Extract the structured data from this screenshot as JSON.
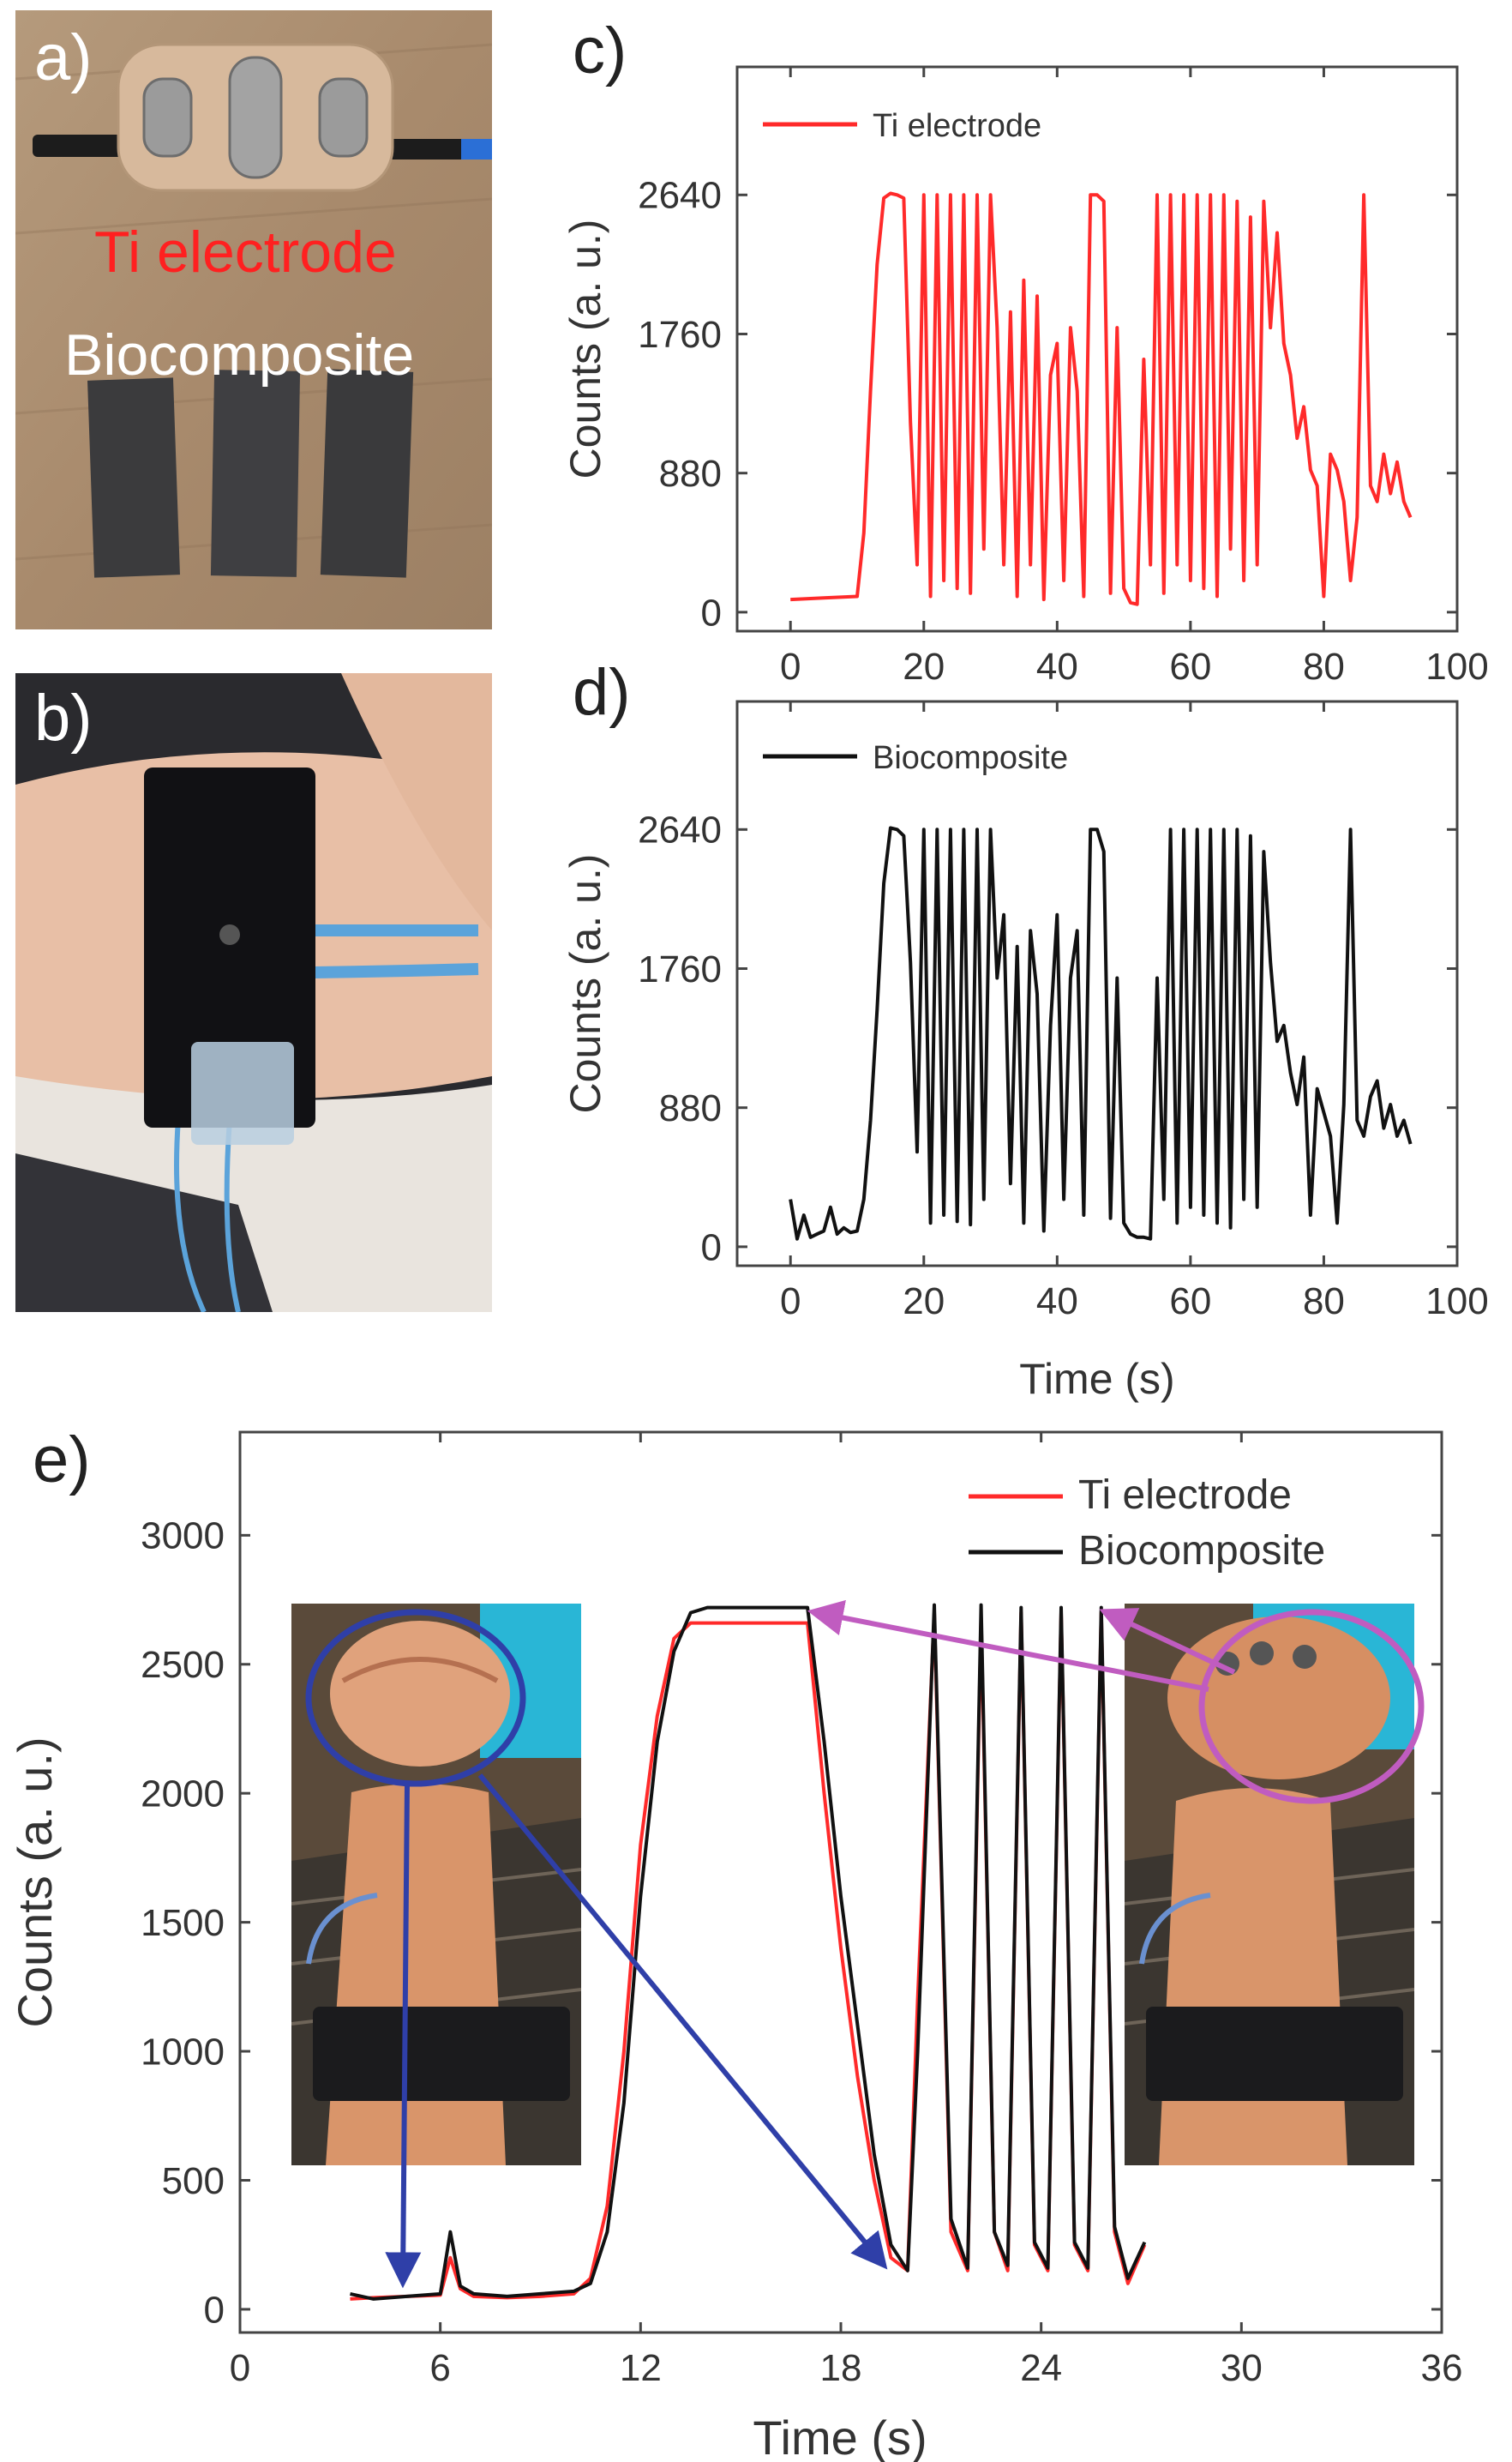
{
  "panels": {
    "a": {
      "letter": "a)",
      "label_ti": "Ti electrode",
      "label_bio": "Biocomposite"
    },
    "b": {
      "letter": "b)"
    },
    "c": {
      "letter": "c)"
    },
    "d": {
      "letter": "d)"
    },
    "e": {
      "letter": "e)"
    }
  },
  "colors": {
    "ti": "#ff2a2a",
    "bio": "#111111",
    "blue_arrow": "#2f3fa8",
    "magenta_arrow": "#c05cc0"
  },
  "icons": [
    "blue-arrow-icon",
    "magenta-arrow-icon",
    "clenched-fist-photo"
  ],
  "chart_data": [
    {
      "id": "c",
      "type": "line",
      "xlabel": "",
      "ylabel": "Counts (a. u.)",
      "xlim": [
        -8,
        100
      ],
      "ylim": [
        -120,
        3450
      ],
      "xticks": [
        0,
        20,
        40,
        60,
        80,
        100
      ],
      "yticks": [
        0,
        880,
        1760,
        2640
      ],
      "legend": "top-left",
      "series": [
        {
          "name": "Ti electrode",
          "color": "#ff2a2a",
          "x": [
            0,
            5,
            10,
            11,
            12,
            13,
            14,
            15,
            16,
            17,
            18,
            19,
            20,
            21,
            22,
            23,
            24,
            25,
            26,
            27,
            28,
            29,
            30,
            31,
            32,
            33,
            34,
            35,
            36,
            37,
            38,
            39,
            40,
            41,
            42,
            43,
            44,
            45,
            46,
            47,
            48,
            49,
            50,
            51,
            52,
            53,
            54,
            55,
            56,
            57,
            58,
            59,
            60,
            61,
            62,
            63,
            64,
            65,
            66,
            67,
            68,
            69,
            70,
            71,
            72,
            73,
            74,
            75,
            76,
            77,
            78,
            79,
            80,
            81,
            82,
            83,
            84,
            85,
            86,
            87,
            88,
            89,
            90,
            91,
            92,
            93
          ],
          "y": [
            80,
            90,
            100,
            500,
            1400,
            2200,
            2620,
            2650,
            2640,
            2620,
            1200,
            300,
            2640,
            100,
            2640,
            200,
            2640,
            150,
            2640,
            120,
            2640,
            400,
            2640,
            1800,
            300,
            1900,
            100,
            2100,
            300,
            2000,
            80,
            1500,
            1700,
            200,
            1800,
            1400,
            100,
            2640,
            2640,
            2600,
            120,
            1800,
            150,
            60,
            50,
            1600,
            300,
            2640,
            120,
            2640,
            300,
            2640,
            200,
            2640,
            150,
            2640,
            100,
            2640,
            400,
            2600,
            200,
            2500,
            300,
            2600,
            1800,
            2400,
            1700,
            1500,
            1100,
            1300,
            900,
            800,
            100,
            1000,
            900,
            700,
            200,
            600,
            2640,
            800,
            700,
            1000,
            750,
            950,
            700,
            600
          ]
        }
      ]
    },
    {
      "id": "d",
      "type": "line",
      "xlabel": "Time (s)",
      "ylabel": "Counts (a. u.)",
      "xlim": [
        -8,
        100
      ],
      "ylim": [
        -120,
        3450
      ],
      "xticks": [
        0,
        20,
        40,
        60,
        80,
        100
      ],
      "yticks": [
        0,
        880,
        1760,
        2640
      ],
      "legend": "top-left",
      "series": [
        {
          "name": "Biocomposite",
          "color": "#111111",
          "x": [
            0,
            1,
            2,
            3,
            4,
            5,
            6,
            7,
            8,
            9,
            10,
            11,
            12,
            13,
            14,
            15,
            16,
            17,
            18,
            19,
            20,
            21,
            22,
            23,
            24,
            25,
            26,
            27,
            28,
            29,
            30,
            31,
            32,
            33,
            34,
            35,
            36,
            37,
            38,
            39,
            40,
            41,
            42,
            43,
            44,
            45,
            46,
            47,
            48,
            49,
            50,
            51,
            52,
            53,
            54,
            55,
            56,
            57,
            58,
            59,
            60,
            61,
            62,
            63,
            64,
            65,
            66,
            67,
            68,
            69,
            70,
            71,
            72,
            73,
            74,
            75,
            76,
            77,
            78,
            79,
            80,
            81,
            82,
            83,
            84,
            85,
            86,
            87,
            88,
            89,
            90,
            91,
            92,
            93
          ],
          "y": [
            300,
            50,
            200,
            60,
            80,
            100,
            250,
            80,
            120,
            90,
            100,
            300,
            800,
            1500,
            2300,
            2650,
            2640,
            2600,
            1800,
            600,
            2640,
            150,
            2640,
            200,
            2640,
            160,
            2640,
            140,
            2640,
            300,
            2640,
            1700,
            2100,
            400,
            1900,
            150,
            2000,
            1600,
            100,
            1400,
            2100,
            300,
            1700,
            2000,
            200,
            2640,
            2640,
            2500,
            180,
            1700,
            150,
            80,
            60,
            60,
            50,
            1700,
            300,
            2640,
            150,
            2640,
            250,
            2640,
            200,
            2640,
            150,
            2640,
            120,
            2640,
            300,
            2600,
            250,
            2500,
            1800,
            1300,
            1400,
            1100,
            900,
            1200,
            200,
            1000,
            850,
            700,
            150,
            900,
            2640,
            800,
            700,
            950,
            1050,
            750,
            900,
            700,
            800,
            650
          ]
        }
      ]
    },
    {
      "id": "e",
      "type": "line",
      "xlabel": "Time (s)",
      "ylabel": "Counts (a. u.)",
      "xlim": [
        0,
        36
      ],
      "ylim": [
        -90,
        3400
      ],
      "xticks": [
        0,
        6,
        12,
        18,
        24,
        30,
        36
      ],
      "yticks": [
        0,
        500,
        1000,
        1500,
        2000,
        2500,
        3000
      ],
      "legend": "top-right",
      "series": [
        {
          "name": "Ti electrode",
          "color": "#ff2a2a",
          "x": [
            3.3,
            4,
            5,
            6,
            6.3,
            6.6,
            7,
            8,
            9,
            10,
            10.5,
            11,
            11.5,
            12,
            12.5,
            13,
            13.5,
            14,
            14.5,
            15,
            16,
            17,
            17.5,
            18,
            18.5,
            19,
            19.5,
            20,
            20.3,
            20.8,
            21.3,
            21.8,
            22.2,
            22.6,
            23,
            23.4,
            23.8,
            24.2,
            24.6,
            25,
            25.4,
            25.8,
            26.2,
            26.6,
            27.1
          ],
          "y": [
            40,
            45,
            50,
            55,
            200,
            80,
            50,
            45,
            50,
            60,
            120,
            400,
            1000,
            1800,
            2300,
            2600,
            2660,
            2660,
            2660,
            2660,
            2660,
            2660,
            2000,
            1400,
            900,
            500,
            200,
            150,
            1200,
            2700,
            300,
            150,
            2680,
            300,
            150,
            2700,
            250,
            150,
            2700,
            250,
            150,
            2700,
            300,
            100,
            250
          ]
        },
        {
          "name": "Biocomposite",
          "color": "#111111",
          "x": [
            3.3,
            4,
            5,
            6,
            6.3,
            6.6,
            7,
            8,
            9,
            10,
            10.5,
            11,
            11.5,
            12,
            12.5,
            13,
            13.5,
            14,
            14.5,
            15,
            16,
            17,
            17.5,
            18,
            18.5,
            19,
            19.5,
            20,
            20.3,
            20.8,
            21.3,
            21.8,
            22.2,
            22.6,
            23,
            23.4,
            23.8,
            24.2,
            24.6,
            25,
            25.4,
            25.8,
            26.2,
            26.6,
            27.1
          ],
          "y": [
            60,
            40,
            50,
            60,
            300,
            90,
            60,
            50,
            60,
            70,
            100,
            300,
            800,
            1600,
            2200,
            2550,
            2700,
            2720,
            2720,
            2720,
            2720,
            2720,
            2200,
            1600,
            1100,
            600,
            250,
            150,
            1000,
            2730,
            350,
            160,
            2730,
            300,
            170,
            2720,
            260,
            160,
            2720,
            260,
            160,
            2720,
            320,
            120,
            260
          ]
        }
      ]
    }
  ]
}
